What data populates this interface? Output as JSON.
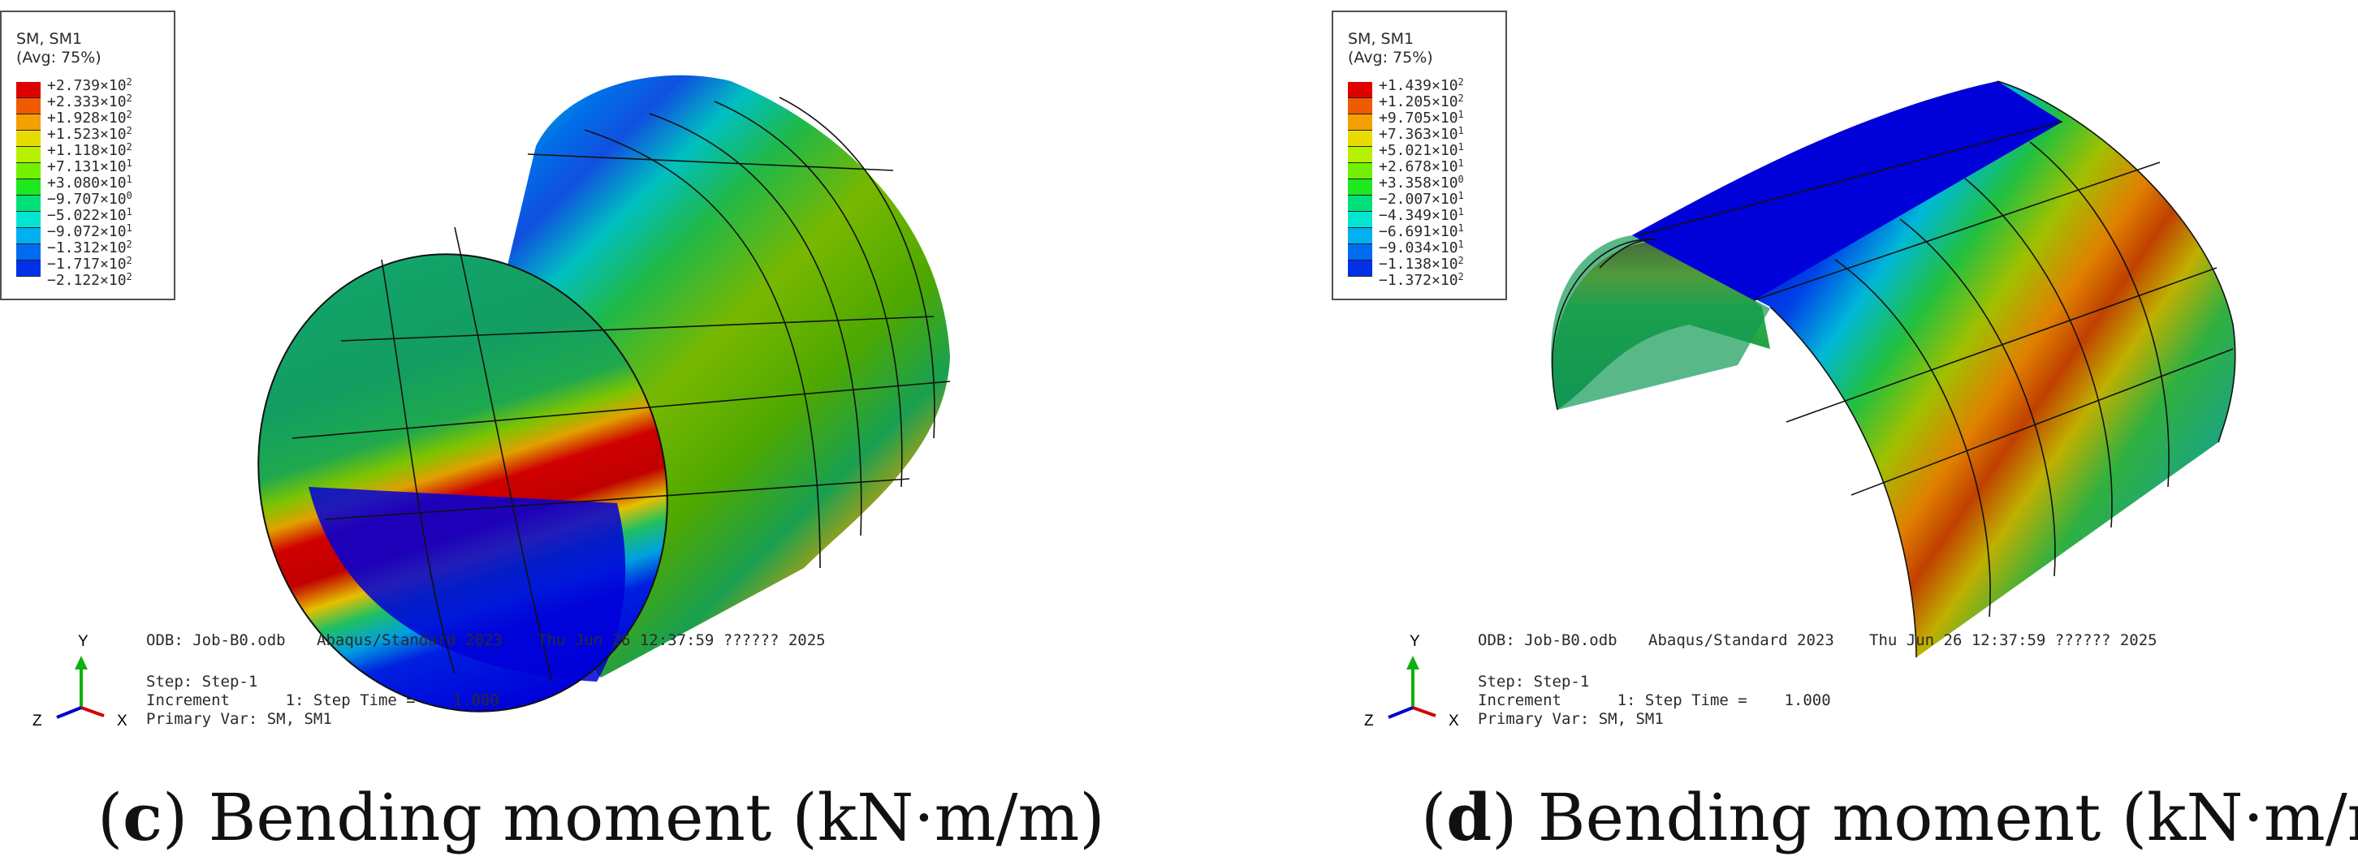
{
  "panels": [
    {
      "id": "c",
      "legend": {
        "title": "SM, SM1",
        "avg": "(Avg: 75%)",
        "entries": [
          {
            "mantissa": "+2.739",
            "exponent": "2",
            "color": "#e00000"
          },
          {
            "mantissa": "+2.333",
            "exponent": "2",
            "color": "#f05a00"
          },
          {
            "mantissa": "+1.928",
            "exponent": "2",
            "color": "#f3a000"
          },
          {
            "mantissa": "+1.523",
            "exponent": "2",
            "color": "#e7dc00"
          },
          {
            "mantissa": "+1.118",
            "exponent": "2",
            "color": "#b7f000"
          },
          {
            "mantissa": "+7.131",
            "exponent": "1",
            "color": "#72f000"
          },
          {
            "mantissa": "+3.080",
            "exponent": "1",
            "color": "#1ee81e"
          },
          {
            "mantissa": "−9.707",
            "exponent": "0",
            "color": "#00e07a"
          },
          {
            "mantissa": "−5.022",
            "exponent": "1",
            "color": "#00e6d2"
          },
          {
            "mantissa": "−9.072",
            "exponent": "1",
            "color": "#00b0f0"
          },
          {
            "mantissa": "−1.312",
            "exponent": "2",
            "color": "#006cf0"
          },
          {
            "mantissa": "−1.717",
            "exponent": "2",
            "color": "#0030e8"
          },
          {
            "mantissa": "−2.122",
            "exponent": "2",
            "color": "#0000d8"
          }
        ]
      },
      "info": {
        "odb": "ODB: Job-B0.odb",
        "solver": "Abaqus/Standard 2023",
        "date": "Thu Jun 26 12:37:59 ?????? 2025",
        "step": "Step: Step-1",
        "increment": "Increment      1: Step Time =    1.000",
        "primary": "Primary Var: SM, SM1"
      },
      "axes": {
        "y": "Y",
        "z": "Z",
        "x": "X"
      },
      "caption": {
        "letter": "c",
        "text": " Bending moment (kN·m/m)"
      }
    },
    {
      "id": "d",
      "legend": {
        "title": "SM, SM1",
        "avg": "(Avg: 75%)",
        "entries": [
          {
            "mantissa": "+1.439",
            "exponent": "2",
            "color": "#e00000"
          },
          {
            "mantissa": "+1.205",
            "exponent": "2",
            "color": "#f05a00"
          },
          {
            "mantissa": "+9.705",
            "exponent": "1",
            "color": "#f3a000"
          },
          {
            "mantissa": "+7.363",
            "exponent": "1",
            "color": "#e7dc00"
          },
          {
            "mantissa": "+5.021",
            "exponent": "1",
            "color": "#b7f000"
          },
          {
            "mantissa": "+2.678",
            "exponent": "1",
            "color": "#72f000"
          },
          {
            "mantissa": "+3.358",
            "exponent": "0",
            "color": "#1ee81e"
          },
          {
            "mantissa": "−2.007",
            "exponent": "1",
            "color": "#00e07a"
          },
          {
            "mantissa": "−4.349",
            "exponent": "1",
            "color": "#00e6d2"
          },
          {
            "mantissa": "−6.691",
            "exponent": "1",
            "color": "#00b0f0"
          },
          {
            "mantissa": "−9.034",
            "exponent": "1",
            "color": "#006cf0"
          },
          {
            "mantissa": "−1.138",
            "exponent": "2",
            "color": "#0030e8"
          },
          {
            "mantissa": "−1.372",
            "exponent": "2",
            "color": "#0000d8"
          }
        ]
      },
      "info": {
        "odb": "ODB: Job-B0.odb",
        "solver": "Abaqus/Standard 2023",
        "date": "Thu Jun 26 12:37:59 ?????? 2025",
        "step": "Step: Step-1",
        "increment": "Increment      1: Step Time =    1.000",
        "primary": "Primary Var: SM, SM1"
      },
      "axes": {
        "y": "Y",
        "z": "Z",
        "x": "X"
      },
      "caption": {
        "letter": "d",
        "text": " Bending moment (kN·m/m)"
      }
    }
  ]
}
